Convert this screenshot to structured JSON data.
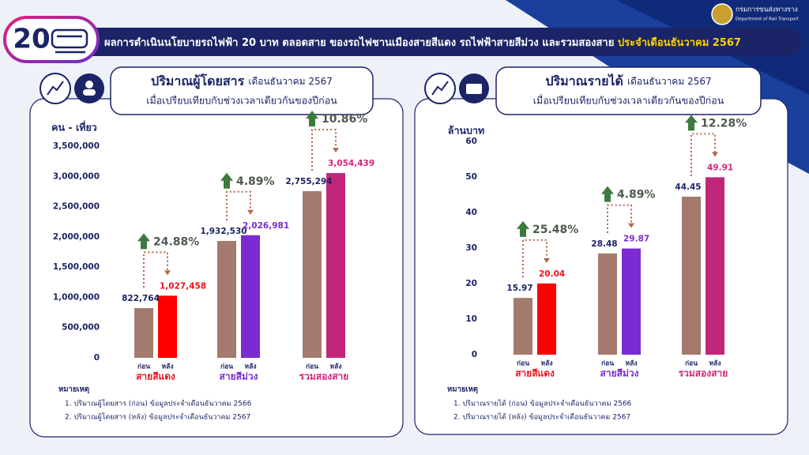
{
  "header": {
    "badge": "20",
    "title": "ผลการดำเนินนโยบายรถไฟฟ้า 20 บาท ตลอดสาย ของรถไฟชานเมืองสายสีแดง รถไฟฟ้าสายสีม่วง และรวมสองสาย",
    "title_highlight": "ประจำเดือนธันวาคม 2567",
    "logo_name": "กรมการขนส่งทางราง",
    "logo_name_en": "Department of Rail Transport"
  },
  "chart_data": [
    {
      "type": "bar",
      "title": "ปริมาณผู้โดยสาร",
      "title_suffix": "เดือนธันวาคม 2567",
      "subtitle": "เมื่อเปรียบเทียบกับช่วงเวลาเดียวกันของปีก่อน",
      "y_label": "คน - เที่ยว",
      "ylim": [
        0,
        3500000
      ],
      "yticks": [
        0,
        {
          "value": 500000,
          "label": "500,000"
        },
        {
          "value": 1000000,
          "label": "1,000,000"
        },
        {
          "value": 1500000,
          "label": "1,500,000"
        },
        {
          "value": 2000000,
          "label": "2,000,000"
        },
        {
          "value": 2500000,
          "label": "2,500,000"
        },
        {
          "value": 3000000,
          "label": "3,000,000"
        },
        {
          "value": 3500000,
          "label": "3,500,000"
        }
      ],
      "categories": [
        "สายสีแดง",
        "สายสีม่วง",
        "รวมสองสาย"
      ],
      "category_colors": [
        "#e8141e",
        "#7b2bd1",
        "#d5237e"
      ],
      "series": [
        {
          "name": "ก่อน",
          "color": "#a47a6e",
          "values": [
            822764,
            1932530,
            2755294
          ],
          "value_labels": [
            "822,764",
            "1,932,530",
            "2,755,294"
          ]
        },
        {
          "name": "หลัง",
          "colors": [
            "#ff0000",
            "#7b2bd1",
            "#c0267a"
          ],
          "values": [
            1027458,
            2026981,
            3054439
          ],
          "value_labels": [
            "1,027,458",
            "2,026,981",
            "3,054,439"
          ]
        }
      ],
      "change": {
        "values": [
          24.88,
          4.89,
          10.86
        ],
        "value_labels": [
          "24.88%",
          "4.89%",
          "10.86%"
        ]
      },
      "notes_title": "หมายเหตุ",
      "notes": [
        "1. ปริมาณผู้โดยสาร (ก่อน) ข้อมูลประจำเดือนธันวาคม 2566",
        "2. ปริมาณผู้โดยสาร (หลัง) ข้อมูลประจำเดือนธันวาคม 2567"
      ]
    },
    {
      "type": "bar",
      "title": "ปริมาณรายได้",
      "title_suffix": "เดือนธันวาคม 2567",
      "subtitle": "เมื่อเปรียบเทียบกับช่วงเวลาเดียวกันของปีก่อน",
      "y_label": "ล้านบาท",
      "ylim": [
        0,
        60
      ],
      "yticks": [
        0,
        10,
        20,
        30,
        40,
        50,
        60
      ],
      "categories": [
        "สายสีแดง",
        "สายสีม่วง",
        "รวมสองสาย"
      ],
      "category_colors": [
        "#e8141e",
        "#7b2bd1",
        "#d5237e"
      ],
      "series": [
        {
          "name": "ก่อน",
          "color": "#a47a6e",
          "values": [
            15.97,
            28.48,
            44.45
          ]
        },
        {
          "name": "หลัง",
          "colors": [
            "#ff0000",
            "#7b2bd1",
            "#c0267a"
          ],
          "values": [
            20.04,
            29.87,
            49.91
          ]
        }
      ],
      "change": {
        "values": [
          25.48,
          4.89,
          12.28
        ],
        "value_labels": [
          "25.48%",
          "4.89%",
          "12.28%"
        ]
      },
      "notes_title": "หมายเหตุ",
      "notes": [
        "1. ปริมาณรายได้ (ก่อน) ข้อมูลประจำเดือนธันวาคม 2566",
        "2. ปริมาณรายได้ (หลัง) ข้อมูลประจำเดือนธันวาคม 2567"
      ]
    }
  ]
}
